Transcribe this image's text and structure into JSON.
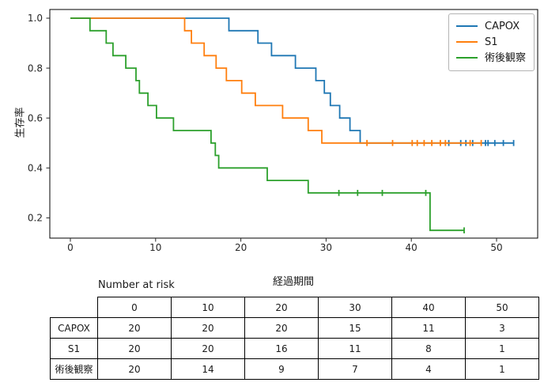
{
  "chart_data": {
    "type": "line",
    "subtype": "kaplan-meier-step",
    "title": "",
    "xlabel": "経過期間",
    "ylabel": "生存率",
    "x_ticks": [
      0,
      10,
      20,
      30,
      40,
      50
    ],
    "y_ticks": [
      0.2,
      0.4,
      0.6,
      0.8,
      1.0
    ],
    "xlim": [
      -2.4,
      54.9
    ],
    "ylim": [
      0.12,
      1.035
    ],
    "grid": false,
    "legend_position": "upper right",
    "series": [
      {
        "name": "CAPOX",
        "color": "#1f77b4",
        "steps": [
          [
            0,
            1.0
          ],
          [
            18.6,
            0.95
          ],
          [
            22.0,
            0.9
          ],
          [
            23.6,
            0.85
          ],
          [
            26.4,
            0.8
          ],
          [
            28.8,
            0.75
          ],
          [
            29.8,
            0.7
          ],
          [
            30.5,
            0.65
          ],
          [
            31.6,
            0.6
          ],
          [
            32.8,
            0.55
          ],
          [
            34.0,
            0.5
          ]
        ],
        "end": 52.0,
        "censors": [
          [
            44.4,
            0.5
          ],
          [
            45.8,
            0.5
          ],
          [
            46.4,
            0.5
          ],
          [
            47.2,
            0.5
          ],
          [
            48.7,
            0.5
          ],
          [
            49.0,
            0.5
          ],
          [
            49.8,
            0.5
          ],
          [
            50.8,
            0.5
          ],
          [
            52.0,
            0.5
          ]
        ]
      },
      {
        "name": "S1",
        "color": "#ff7f0e",
        "steps": [
          [
            0,
            1.0
          ],
          [
            13.4,
            0.95
          ],
          [
            14.2,
            0.9
          ],
          [
            15.7,
            0.85
          ],
          [
            17.1,
            0.8
          ],
          [
            18.3,
            0.75
          ],
          [
            20.1,
            0.7
          ],
          [
            21.7,
            0.65
          ],
          [
            24.9,
            0.6
          ],
          [
            27.9,
            0.55
          ],
          [
            29.5,
            0.5
          ]
        ],
        "end": 48.2,
        "censors": [
          [
            34.8,
            0.5
          ],
          [
            37.8,
            0.5
          ],
          [
            40.1,
            0.5
          ],
          [
            40.7,
            0.5
          ],
          [
            41.5,
            0.5
          ],
          [
            42.4,
            0.5
          ],
          [
            43.4,
            0.5
          ],
          [
            44.0,
            0.5
          ],
          [
            46.9,
            0.5
          ],
          [
            48.2,
            0.5
          ]
        ]
      },
      {
        "name": "術後観察",
        "color": "#2ca02c",
        "steps": [
          [
            0,
            1.0
          ],
          [
            2.3,
            0.95
          ],
          [
            4.2,
            0.9
          ],
          [
            5.0,
            0.85
          ],
          [
            6.5,
            0.8
          ],
          [
            7.7,
            0.75
          ],
          [
            8.1,
            0.7
          ],
          [
            9.1,
            0.65
          ],
          [
            10.1,
            0.6
          ],
          [
            12.1,
            0.55
          ],
          [
            16.5,
            0.5
          ],
          [
            17.0,
            0.45
          ],
          [
            17.4,
            0.4
          ],
          [
            23.1,
            0.35
          ],
          [
            27.9,
            0.3
          ],
          [
            42.2,
            0.15
          ]
        ],
        "end": 46.2,
        "censors": [
          [
            31.5,
            0.3
          ],
          [
            33.7,
            0.3
          ],
          [
            36.6,
            0.3
          ],
          [
            41.7,
            0.3
          ],
          [
            46.2,
            0.15
          ]
        ]
      }
    ],
    "risk_table": {
      "title": "Number at risk",
      "columns": [
        "0",
        "10",
        "20",
        "30",
        "40",
        "50"
      ],
      "rows": [
        {
          "label": "CAPOX",
          "values": [
            "20",
            "20",
            "20",
            "15",
            "11",
            "3"
          ]
        },
        {
          "label": "S1",
          "values": [
            "20",
            "20",
            "16",
            "11",
            "8",
            "1"
          ]
        },
        {
          "label": "術後観察",
          "values": [
            "20",
            "14",
            "9",
            "7",
            "4",
            "1"
          ]
        }
      ]
    }
  }
}
